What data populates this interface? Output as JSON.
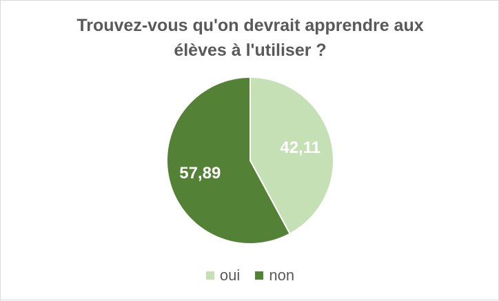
{
  "chart_data": {
    "type": "pie",
    "title_lines": [
      "Trouvez-vous qu'on devrait apprendre aux",
      "élèves à l'utiliser ?"
    ],
    "slices": [
      {
        "label": "oui",
        "value": 42.11,
        "value_label": "42,11",
        "color": "#c5e0b4"
      },
      {
        "label": "non",
        "value": 57.89,
        "value_label": "57,89",
        "color": "#538135"
      }
    ],
    "start": "12 o'clock",
    "direction": "clockwise",
    "legend_position": "bottom"
  }
}
